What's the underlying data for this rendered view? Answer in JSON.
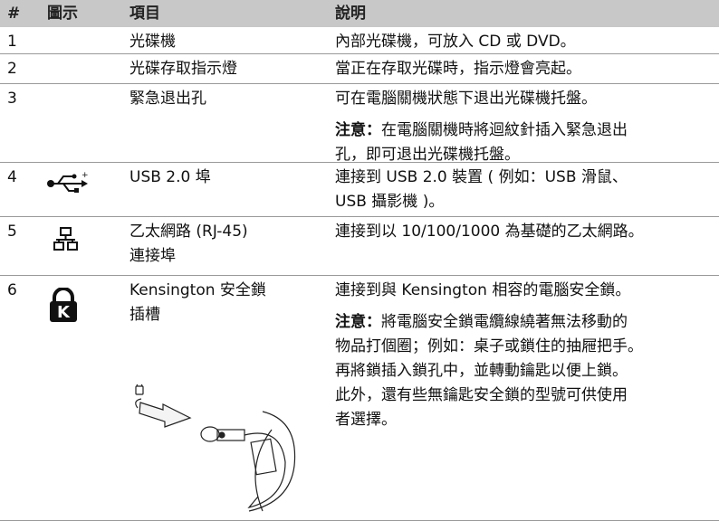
{
  "table": {
    "header": [
      "#",
      "圖示",
      "項目",
      "說明"
    ],
    "rows": [
      {
        "number": "1",
        "item": [
          "光碟機"
        ],
        "description": [
          {
            "lines": [
              "內部光碟機，可放入 CD 或 DVD。"
            ]
          }
        ]
      },
      {
        "number": "2",
        "item": [
          "光碟存取指示燈"
        ],
        "description": [
          {
            "lines": [
              "當正在存取光碟時，指示燈會亮起。"
            ]
          }
        ]
      },
      {
        "number": "3",
        "item": [
          "緊急退出孔"
        ],
        "description": [
          {
            "lines": [
              "可在電腦關機狀態下退出光碟機托盤。"
            ]
          },
          {
            "label": "注意：",
            "lines": [
              "在電腦關機時將迴紋針插入緊急退出",
              "孔，即可退出光碟機托盤。"
            ]
          }
        ]
      },
      {
        "number": "4",
        "item": [
          "USB 2.0 埠"
        ],
        "description": [
          {
            "lines": [
              "連接到 USB 2.0 裝置 ( 例如：USB 滑鼠、",
              "USB 攝影機 )。"
            ]
          }
        ]
      },
      {
        "number": "5",
        "item": [
          "乙太網路 (RJ-45)",
          "連接埠"
        ],
        "description": [
          {
            "lines": [
              "連接到以 10/100/1000 為基礎的乙太網路。"
            ]
          }
        ]
      },
      {
        "number": "6",
        "item": [
          "Kensington 安全鎖",
          "插槽"
        ],
        "description": [
          {
            "lines": [
              "連接到與 Kensington 相容的電腦安全鎖。"
            ]
          },
          {
            "label": "注意：",
            "lines": [
              "將電腦安全鎖電纜線繞著無法移動的",
              "物品打個圈；例如：桌子或鎖住的抽屜把手。",
              "再將鎖插入鎖孔中，並轉動鑰匙以便上鎖。",
              "此外，還有些無鑰匙安全鎖的型號可供使用",
              "者選擇。"
            ]
          }
        ]
      }
    ]
  }
}
